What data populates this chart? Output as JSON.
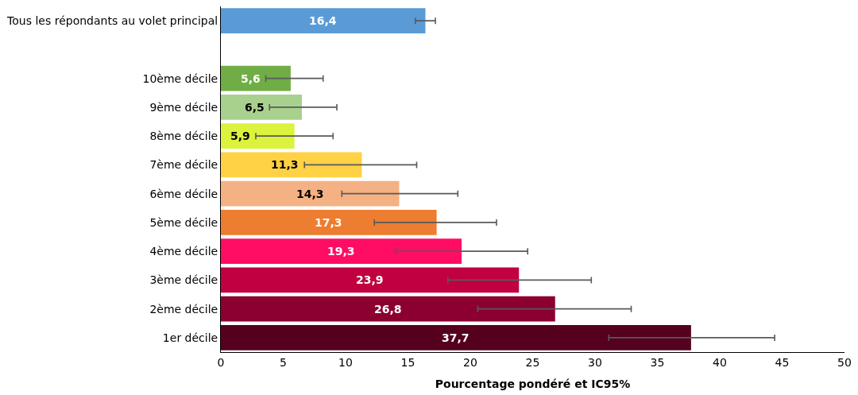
{
  "chart_data": {
    "type": "bar",
    "orientation": "horizontal",
    "xlabel": "Pourcentage pondéré et IC95%",
    "categories": [
      "Tous les répondants au volet principal",
      null,
      "10ème décile",
      "9ème décile",
      "8ème décile",
      "7ème décile",
      "6ème décile",
      "5ème décile",
      "4ème décile",
      "3ème décile",
      "2ème décile",
      "1er décile"
    ],
    "values": [
      16.4,
      null,
      5.6,
      6.5,
      5.9,
      11.3,
      14.3,
      17.3,
      19.3,
      23.9,
      26.8,
      37.7
    ],
    "value_labels": [
      "16,4",
      null,
      "5,6",
      "6,5",
      "5,9",
      "11,3",
      "14,3",
      "17,3",
      "19,3",
      "23,9",
      "26,8",
      "37,7"
    ],
    "errors": [
      [
        15.6,
        17.2
      ],
      null,
      [
        3.6,
        8.2
      ],
      [
        3.9,
        9.3
      ],
      [
        2.8,
        9.0
      ],
      [
        6.7,
        15.7
      ],
      [
        9.7,
        19.0
      ],
      [
        12.3,
        22.1
      ],
      [
        14.0,
        24.6
      ],
      [
        18.2,
        29.7
      ],
      [
        20.6,
        32.9
      ],
      [
        31.1,
        44.4
      ]
    ],
    "colors": [
      "#5b9bd5",
      "#ffffff",
      "#70ad47",
      "#a9d18e",
      "#dcf23c",
      "#ffd145",
      "#f4b183",
      "#ed7d31",
      "#ff0d64",
      "#c00040",
      "#8b0030",
      "#55001f"
    ],
    "xlim": [
      0,
      50
    ],
    "xticks": [
      0,
      5,
      10,
      15,
      20,
      25,
      30,
      35,
      40,
      45,
      50
    ],
    "legend": false
  }
}
